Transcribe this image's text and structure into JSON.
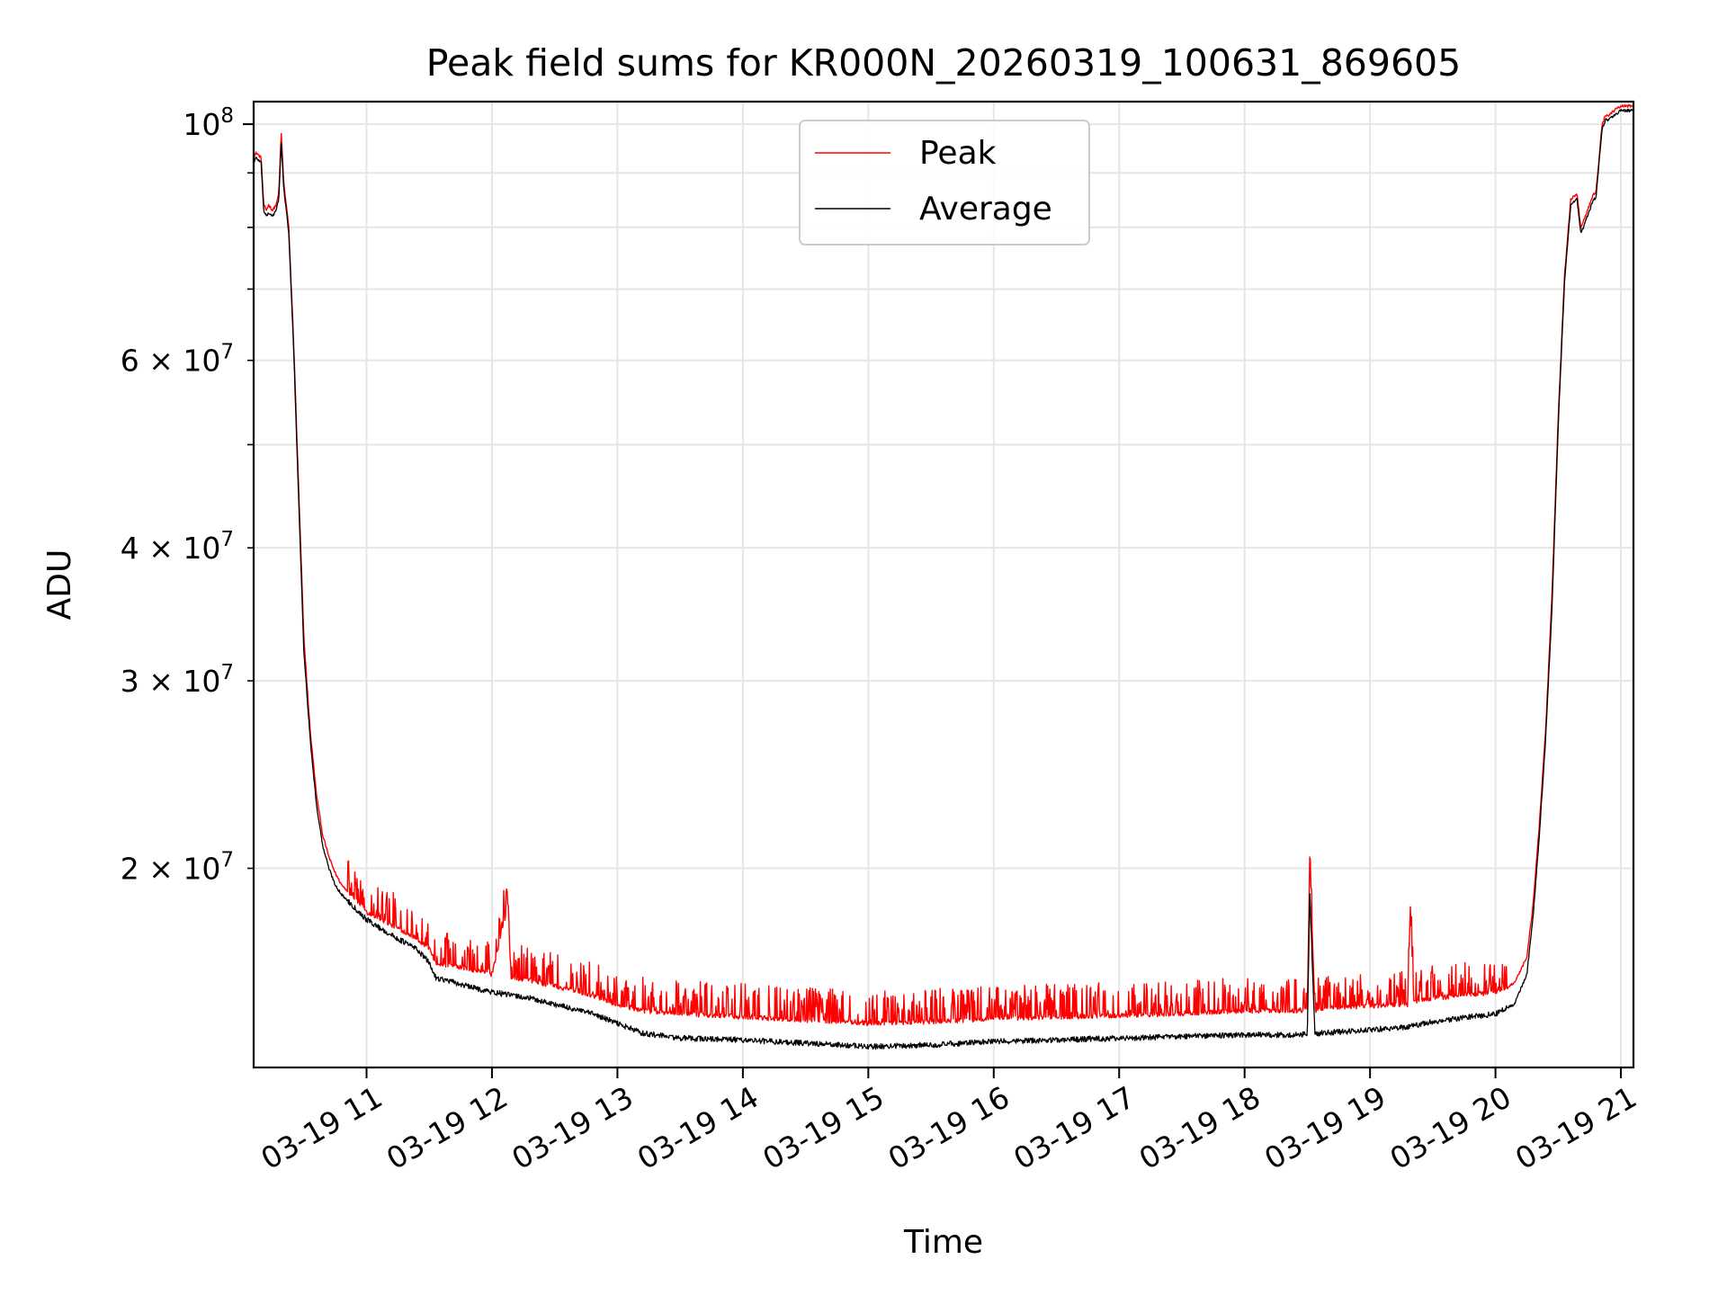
{
  "chart_data": {
    "type": "line",
    "title": "Peak field sums for KR000N_20260319_100631_869605",
    "xlabel": "Time",
    "ylabel": "ADU",
    "yscale": "log",
    "ylim": [
      13000000,
      105000000
    ],
    "xlim_hours": [
      10.1,
      21.1
    ],
    "grid": true,
    "legend_position": "top-center",
    "x_tick_values": [
      11,
      12,
      13,
      14,
      15,
      16,
      17,
      18,
      19,
      20,
      21
    ],
    "x_tick_labels": [
      "03-19 11",
      "03-19 12",
      "03-19 13",
      "03-19 14",
      "03-19 15",
      "03-19 16",
      "03-19 17",
      "03-19 18",
      "03-19 19",
      "03-19 20",
      "03-19 21"
    ],
    "y_major_ticks": [
      {
        "value": 100000000,
        "base": "10",
        "exp": "8"
      }
    ],
    "y_minor_ticks": [
      {
        "value": 20000000,
        "mant": "2",
        "base": "10",
        "exp": "7"
      },
      {
        "value": 30000000,
        "mant": "3",
        "base": "10",
        "exp": "7"
      },
      {
        "value": 40000000,
        "mant": "4",
        "base": "10",
        "exp": "7"
      },
      {
        "value": 60000000,
        "mant": "6",
        "base": "10",
        "exp": "7"
      }
    ],
    "y_minor_unlabeled": [
      50000000,
      70000000,
      80000000,
      90000000
    ],
    "times_symbol": "×",
    "series": [
      {
        "name": "Peak",
        "color": "#ff0000",
        "x": [
          10.1,
          10.12,
          10.14,
          10.16,
          10.18,
          10.2,
          10.22,
          10.25,
          10.28,
          10.3,
          10.32,
          10.34,
          10.36,
          10.38,
          10.42,
          10.46,
          10.5,
          10.55,
          10.6,
          10.65,
          10.7,
          10.75,
          10.8,
          10.9,
          11.0,
          11.2,
          11.4,
          11.5,
          11.55,
          11.8,
          12.0,
          12.13,
          12.15,
          12.3,
          12.5,
          12.8,
          13.0,
          13.2,
          13.5,
          14.0,
          14.5,
          15.0,
          15.5,
          16.0,
          16.5,
          17.0,
          17.5,
          18.0,
          18.45,
          18.5,
          18.52,
          18.56,
          18.6,
          19.0,
          19.3,
          19.32,
          19.35,
          19.5,
          20.0,
          20.15,
          20.25,
          20.3,
          20.35,
          20.4,
          20.45,
          20.5,
          20.55,
          20.6,
          20.65,
          20.68,
          20.7,
          20.75,
          20.78,
          20.8,
          20.85,
          20.88,
          20.9,
          20.95,
          21.0,
          21.05,
          21.1
        ],
        "y": [
          93000000,
          94000000,
          93500000,
          93000000,
          84000000,
          83000000,
          84000000,
          83000000,
          84000000,
          86000000,
          98000000,
          88000000,
          84000000,
          80000000,
          62000000,
          45000000,
          33000000,
          27000000,
          23500000,
          21500000,
          20500000,
          19800000,
          19300000,
          18800000,
          18200000,
          17700000,
          17200000,
          16800000,
          16300000,
          16100000,
          15900000,
          18500000,
          15800000,
          15700000,
          15500000,
          15200000,
          14900000,
          14700000,
          14600000,
          14500000,
          14400000,
          14300000,
          14350000,
          14450000,
          14500000,
          14550000,
          14600000,
          14700000,
          14700000,
          14750000,
          20600000,
          14700000,
          14750000,
          14850000,
          14900000,
          18200000,
          15000000,
          15100000,
          15300000,
          15600000,
          16500000,
          18500000,
          22000000,
          27000000,
          36000000,
          53000000,
          72000000,
          85000000,
          86000000,
          80000000,
          81000000,
          84000000,
          86000000,
          86000000,
          100000000,
          102000000,
          102000000,
          103000000,
          104000000,
          104000000,
          104000000
        ]
      },
      {
        "name": "Average",
        "color": "#000000",
        "x": [
          10.1,
          10.12,
          10.14,
          10.16,
          10.18,
          10.2,
          10.22,
          10.25,
          10.28,
          10.3,
          10.32,
          10.34,
          10.36,
          10.38,
          10.42,
          10.46,
          10.5,
          10.55,
          10.6,
          10.65,
          10.7,
          10.75,
          10.8,
          10.9,
          11.0,
          11.2,
          11.4,
          11.5,
          11.55,
          11.8,
          12.0,
          12.3,
          12.5,
          12.8,
          13.0,
          13.2,
          13.5,
          14.0,
          14.5,
          15.0,
          15.5,
          16.0,
          16.5,
          17.0,
          17.5,
          18.0,
          18.45,
          18.5,
          18.52,
          18.56,
          18.6,
          19.0,
          19.3,
          19.5,
          20.0,
          20.15,
          20.25,
          20.3,
          20.35,
          20.4,
          20.45,
          20.5,
          20.55,
          20.6,
          20.65,
          20.68,
          20.7,
          20.75,
          20.78,
          20.8,
          20.85,
          20.88,
          20.9,
          20.95,
          21.0,
          21.05,
          21.1
        ],
        "y": [
          92000000,
          93000000,
          92500000,
          92000000,
          83000000,
          82000000,
          82500000,
          82000000,
          83000000,
          85000000,
          96000000,
          87000000,
          83000000,
          79000000,
          61000000,
          44000000,
          32000000,
          26500000,
          23000000,
          21000000,
          20000000,
          19300000,
          18900000,
          18400000,
          17900000,
          17300000,
          16800000,
          16300000,
          15800000,
          15500000,
          15300000,
          15100000,
          14900000,
          14600000,
          14300000,
          14000000,
          13850000,
          13800000,
          13700000,
          13600000,
          13650000,
          13750000,
          13800000,
          13850000,
          13900000,
          13950000,
          13950000,
          14000000,
          19000000,
          13950000,
          14000000,
          14100000,
          14200000,
          14350000,
          14600000,
          14900000,
          15900000,
          18000000,
          21500000,
          26500000,
          35000000,
          52000000,
          71000000,
          84000000,
          85000000,
          79000000,
          80000000,
          83000000,
          85000000,
          85000000,
          99000000,
          101000000,
          101000000,
          102000000,
          103000000,
          103000000,
          103000000
        ]
      }
    ]
  }
}
